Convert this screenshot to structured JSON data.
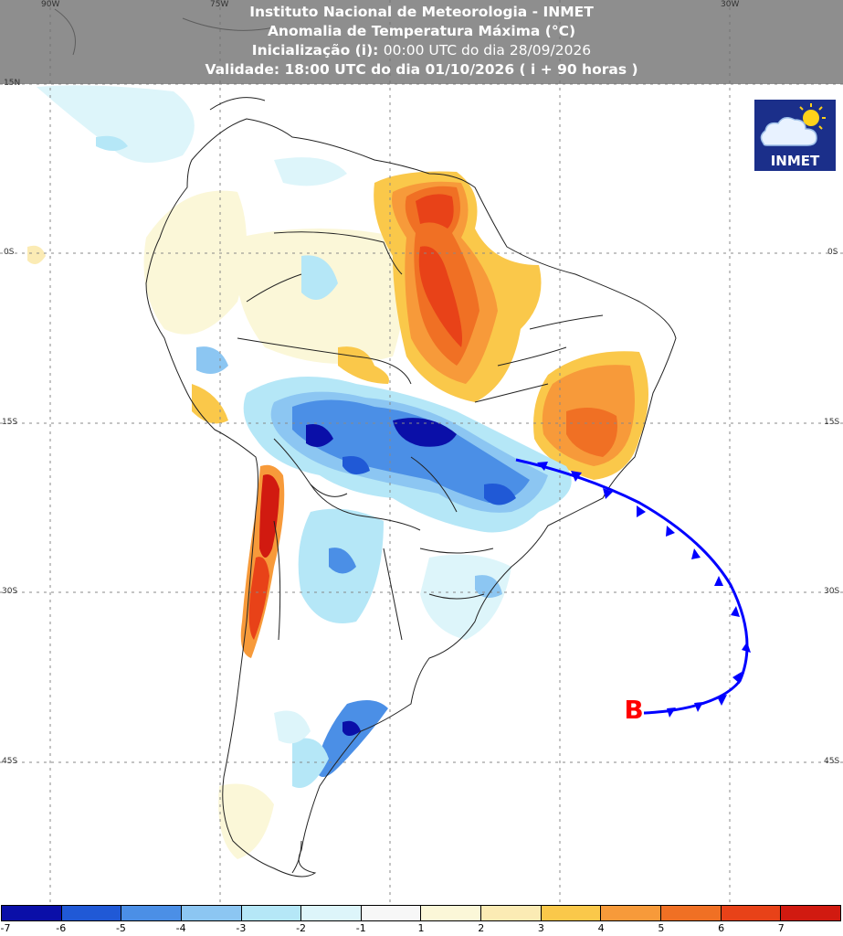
{
  "header": {
    "line1": "Instituto Nacional de Meteorologia - INMET",
    "line2": "Anomalia de Temperatura Máxima (°C)",
    "line3_label": "Inicialização (i):",
    "line3_value": "00:00 UTC do dia 28/09/2026",
    "line4": "Validade: 18:00 UTC do dia 01/10/2026 ( i + 90 horas )"
  },
  "coords": {
    "lon_90w": "90W",
    "lon_75w": "75W",
    "lon_30w": "30W",
    "lat_15n": "15N",
    "lat_0s_left": "0S",
    "lat_0s_right": "0S",
    "lat_15s_left": "15S",
    "lat_15s_right": "15S",
    "lat_30s_left": "30S",
    "lat_30s_right": "30S",
    "lat_45s_left": "45S",
    "lat_45s_right": "45S"
  },
  "logo": {
    "text": "INMET"
  },
  "front": {
    "label": "B",
    "label_color": "#ff0000",
    "line_color": "#0000ff"
  },
  "colorbar": {
    "colors": [
      "#0a0fa8",
      "#2059d6",
      "#4b8fe6",
      "#8cc6f2",
      "#b5e7f7",
      "#ddf5fa",
      "#f7f7f7",
      "#fbf7d8",
      "#fbebb4",
      "#fac84a",
      "#f79a3a",
      "#f07024",
      "#e84218",
      "#d11a10"
    ],
    "labels": [
      "-7",
      "-6",
      "-5",
      "-4",
      "-3",
      "-2",
      "-1",
      "1",
      "2",
      "3",
      "4",
      "5",
      "6",
      "7"
    ]
  }
}
